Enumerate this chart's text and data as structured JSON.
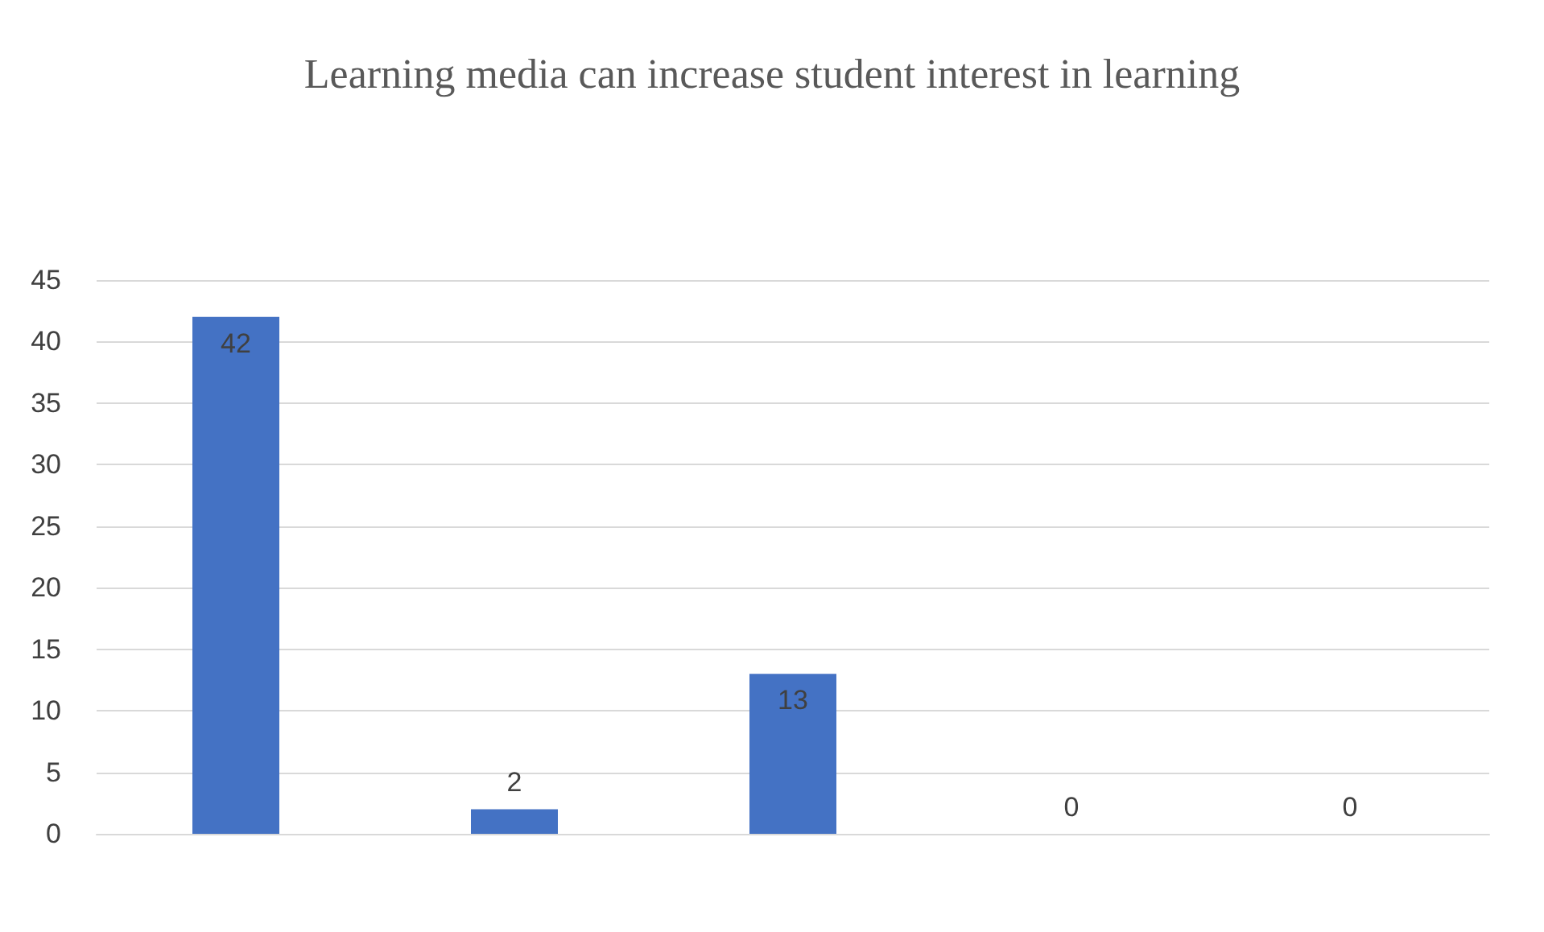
{
  "chart_data": {
    "type": "bar",
    "title": "Learning media can increase student interest in learning",
    "categories": [
      null,
      null,
      null,
      null,
      null
    ],
    "values": [
      42,
      2,
      13,
      0,
      0
    ],
    "color": "#4472c4",
    "ylim": [
      0,
      45
    ],
    "yticks": [
      0,
      5,
      10,
      15,
      20,
      25,
      30,
      35,
      40,
      45
    ],
    "grid": "y",
    "data_labels": true
  }
}
